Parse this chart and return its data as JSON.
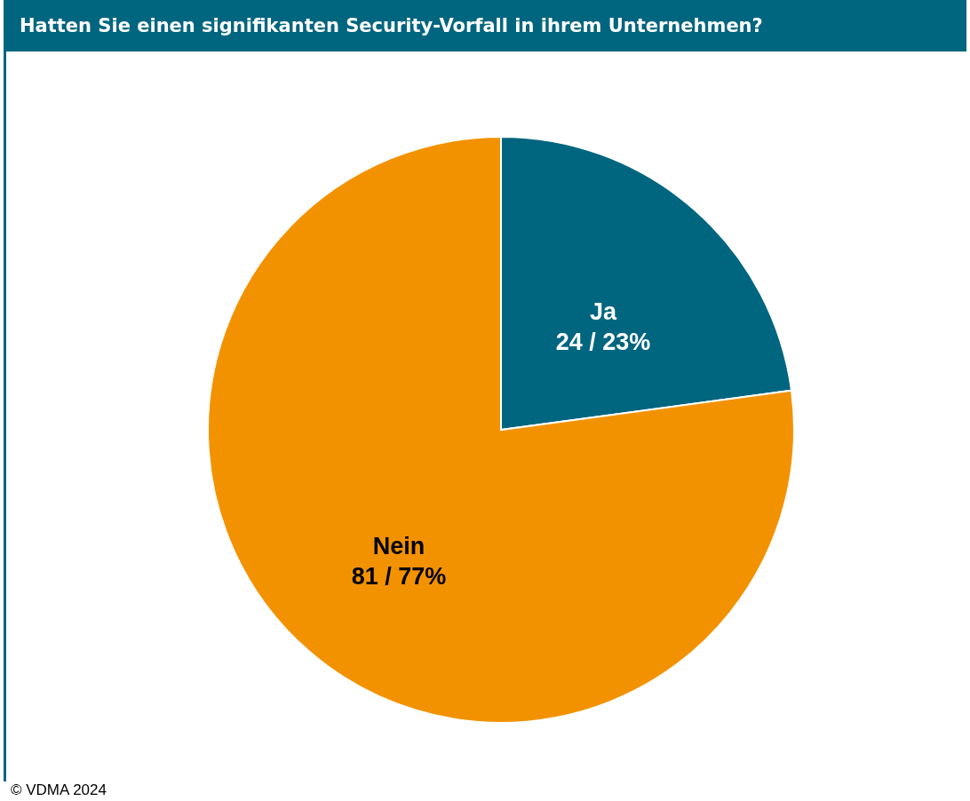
{
  "chart_data": {
    "type": "pie",
    "title": "Hatten Sie einen signifikanten Security-Vorfall in ihrem Unternehmen?",
    "categories": [
      "Ja",
      "Nein"
    ],
    "values": [
      24,
      81
    ],
    "value_labels": [
      "24 / 23%",
      "81 / 77%"
    ],
    "colors": [
      "#00657f",
      "#f39200"
    ],
    "legend": false,
    "annotations": [
      "© VDMA 2024"
    ]
  }
}
